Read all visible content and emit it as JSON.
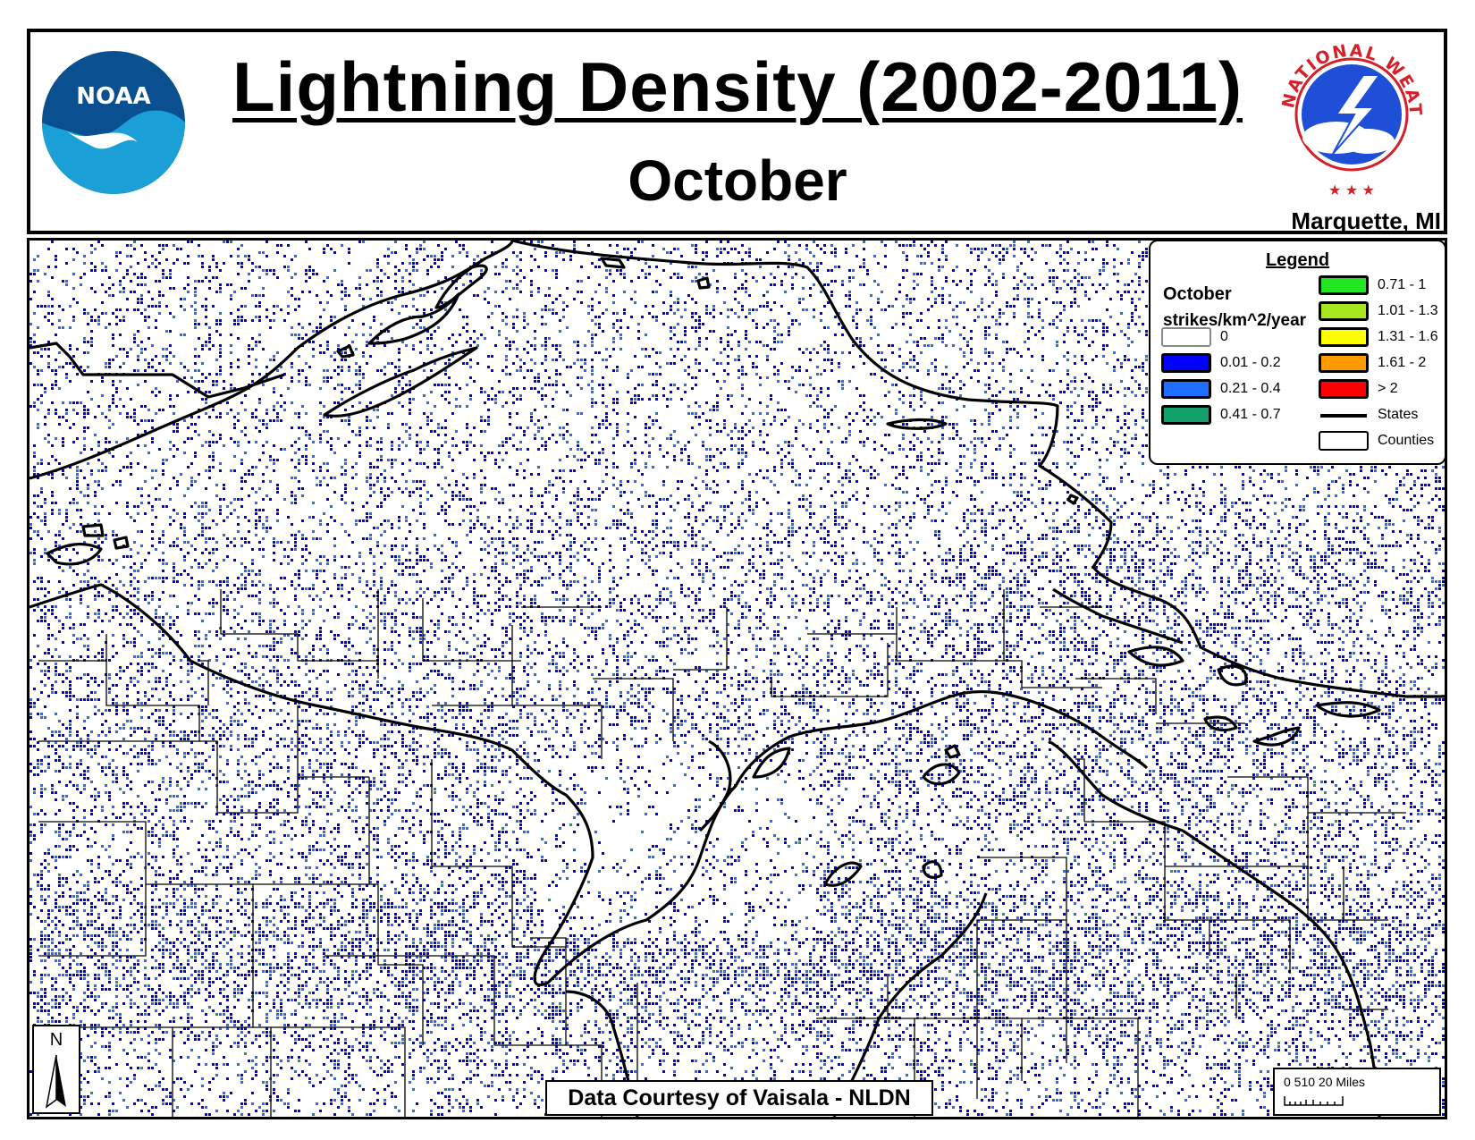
{
  "header": {
    "title": "Lightning Density (2002-2011)",
    "subtitle": "October",
    "office": "Marquette, MI",
    "noaa_logo_text": "NOAA",
    "nws_logo_text": "NATIONAL WEATHER SERVICE"
  },
  "legend": {
    "title": "Legend",
    "month": "October",
    "units": "strikes/km^2/year",
    "classes": [
      {
        "label": "0",
        "color": "#ffffff"
      },
      {
        "label": "0.01 - 0.2",
        "color": "#0000ff"
      },
      {
        "label": "0.21 - 0.4",
        "color": "#1e6fff"
      },
      {
        "label": "0.41 - 0.7",
        "color": "#12a06a"
      },
      {
        "label": "0.71 - 1",
        "color": "#22e622"
      },
      {
        "label": "1.01 - 1.3",
        "color": "#a6e61e"
      },
      {
        "label": "1.31 - 1.6",
        "color": "#ffff00"
      },
      {
        "label": "1.61 - 2",
        "color": "#ff9a00"
      },
      {
        "label": "> 2",
        "color": "#ff0000"
      }
    ],
    "states_label": "States",
    "counties_label": "Counties"
  },
  "credit": "Data Courtesy of Vaisala - NLDN",
  "north_arrow_label": "N",
  "scale": {
    "label": "0 510   20 Miles"
  },
  "colors": {
    "strike_low": "#0000ff",
    "strike_mid": "#1e6fff",
    "strike_high": "#12a06a",
    "boundary": "#000000"
  }
}
